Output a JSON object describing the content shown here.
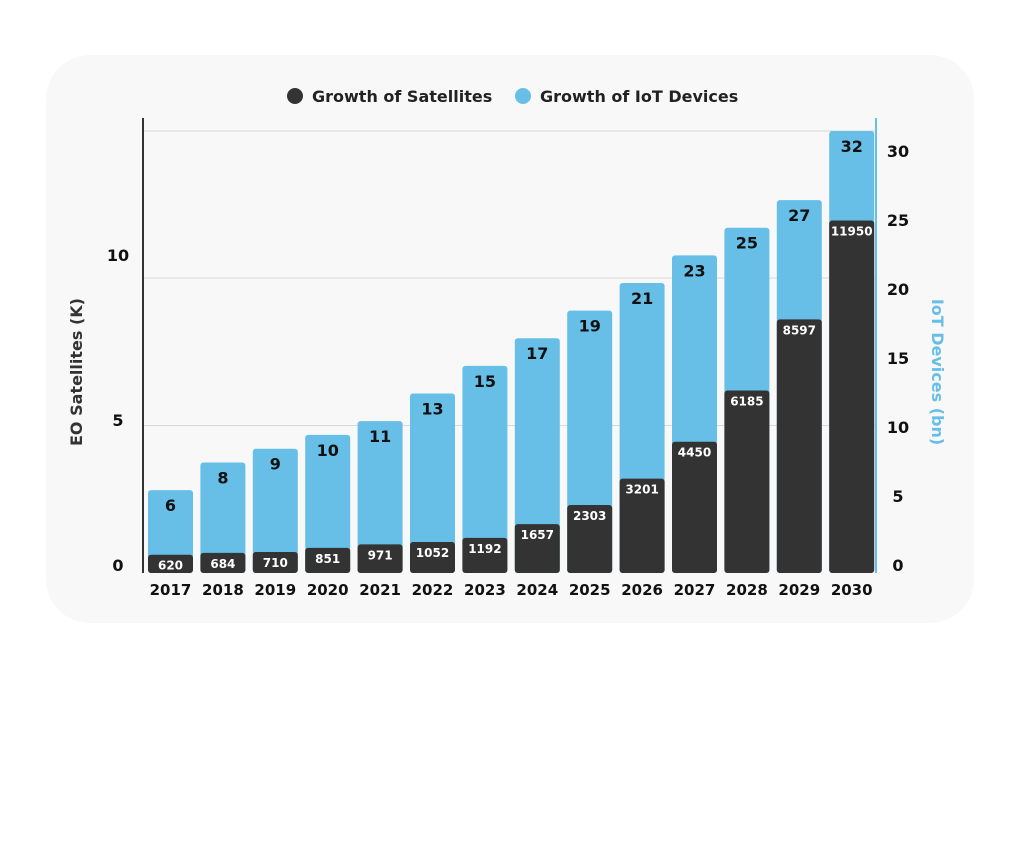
{
  "chart_data": {
    "type": "bar",
    "categories": [
      "2017",
      "2018",
      "2019",
      "2020",
      "2021",
      "2022",
      "2023",
      "2024",
      "2025",
      "2026",
      "2027",
      "2028",
      "2029",
      "2030"
    ],
    "series": [
      {
        "name": "Growth of Satellites",
        "axis": "left",
        "values": [
          620,
          684,
          710,
          851,
          971,
          1052,
          1192,
          1657,
          2303,
          3201,
          4450,
          6185,
          8597,
          11950
        ]
      },
      {
        "name": "Growth of IoT Devices",
        "axis": "right",
        "values": [
          6,
          8,
          9,
          10,
          11,
          13,
          15,
          17,
          19,
          21,
          23,
          25,
          27,
          32
        ]
      }
    ],
    "ylabel": "EO Satellites (K)",
    "y2label": "IoT Devices (bn)",
    "yticks": [
      "0",
      "5",
      "10"
    ],
    "y2ticks": [
      "0",
      "5",
      "10",
      "15",
      "20",
      "25",
      "30"
    ],
    "y2lim": [
      0,
      32
    ],
    "legend_position": "top",
    "colors": {
      "satellites": "#333333",
      "iot": "#67bfe8",
      "grid": "#d8d8d8",
      "axis_left": "#333333",
      "axis_right": "#67bfe8"
    }
  }
}
